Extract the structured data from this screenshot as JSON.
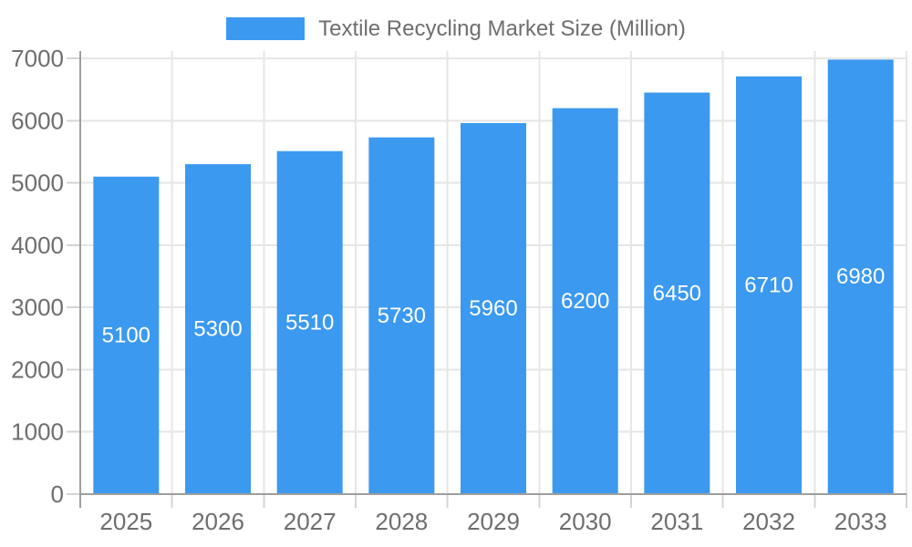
{
  "legend": {
    "label": "Textile Recycling Market Size (Million)"
  },
  "colors": {
    "background": "#ffffff",
    "bar": "#3B99EF",
    "bar_label": "#ffffff",
    "grid": "#e6e6e6",
    "tick": "#d4d4d4",
    "axis_line": "#9e9e9e",
    "axis_text": "#6e6e6e",
    "legend_text": "#6e6e6e"
  },
  "chart_data": {
    "type": "bar",
    "title": "Textile Recycling Market Size (Million)",
    "categories": [
      "2025",
      "2026",
      "2027",
      "2028",
      "2029",
      "2030",
      "2031",
      "2032",
      "2033"
    ],
    "series": [
      {
        "name": "Textile Recycling Market Size (Million)",
        "values": [
          5100,
          5300,
          5510,
          5730,
          5960,
          6200,
          6450,
          6710,
          6980
        ]
      }
    ],
    "values": [
      5100,
      5300,
      5510,
      5730,
      5960,
      6200,
      6450,
      6710,
      6980
    ],
    "value_labels": [
      "5100",
      "5300",
      "5510",
      "5730",
      "5960",
      "6200",
      "6450",
      "6710",
      "6980"
    ],
    "xlabel": "",
    "ylabel": "",
    "ylim": [
      0,
      7000
    ],
    "ytick_step": 1000,
    "ytick_labels": [
      "0",
      "1000",
      "2000",
      "3000",
      "4000",
      "5000",
      "6000",
      "7000"
    ],
    "grid": true,
    "legend_position": "top",
    "value_label_position": "inside-middle"
  }
}
